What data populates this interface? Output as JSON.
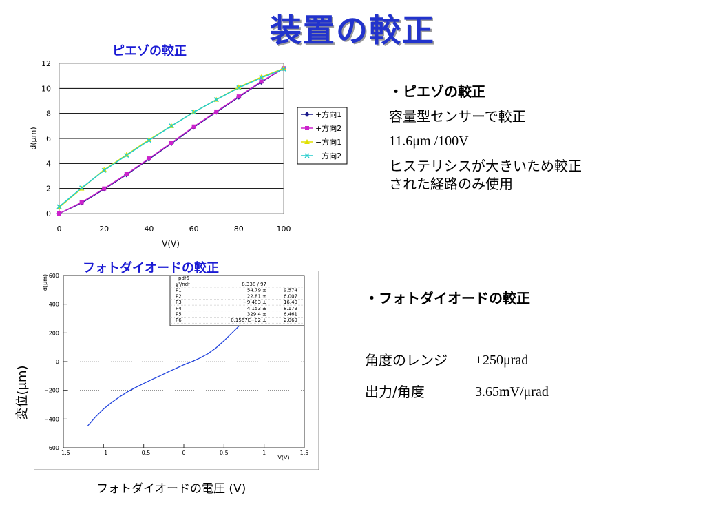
{
  "slide": {
    "title": "装置の較正",
    "piezo_notes": {
      "heading": "・ピエゾの較正",
      "line1": "容量型センサーで較正",
      "line2": "11.6μm /100V",
      "line3a": "ヒステリシスが大きいため較正",
      "line3b": "された経路のみ使用"
    },
    "pd_notes": {
      "heading": "・フォトダイオードの較正",
      "range_label": "角度のレンジ",
      "range_value": "±250μrad",
      "out_label": "出力/角度",
      "out_value": "3.65mV/μrad"
    }
  },
  "chart_data": [
    {
      "type": "line",
      "title": "ピエゾの較正",
      "xlabel": "V(V)",
      "ylabel": "d(μm)",
      "xlim": [
        0,
        100
      ],
      "ylim": [
        0,
        12
      ],
      "xticks": [
        0,
        20,
        40,
        60,
        80,
        100
      ],
      "yticks": [
        0,
        2,
        4,
        6,
        8,
        10,
        12
      ],
      "grid": "horizontal",
      "legend": "right",
      "x": [
        0,
        10,
        20,
        30,
        40,
        50,
        60,
        70,
        80,
        90,
        100
      ],
      "series": [
        {
          "name": "+方向1",
          "color": "#1a1a8c",
          "marker": "diamond",
          "values": [
            0.0,
            0.85,
            1.95,
            3.1,
            4.35,
            5.6,
            6.9,
            8.1,
            9.3,
            10.5,
            11.6
          ]
        },
        {
          "name": "+方向2",
          "color": "#cc22cc",
          "marker": "square",
          "values": [
            0.0,
            0.9,
            2.0,
            3.15,
            4.4,
            5.65,
            6.95,
            8.15,
            9.35,
            10.55,
            11.6
          ]
        },
        {
          "name": "−方向1",
          "color": "#e0e000",
          "marker": "triangle",
          "values": [
            0.5,
            2.0,
            3.5,
            4.7,
            5.9,
            7.0,
            8.1,
            9.1,
            10.1,
            10.9,
            11.6
          ]
        },
        {
          "name": "−方向2",
          "color": "#22cccc",
          "marker": "x",
          "values": [
            0.55,
            2.05,
            3.45,
            4.65,
            5.85,
            7.0,
            8.1,
            9.1,
            10.05,
            10.85,
            11.55
          ]
        }
      ]
    },
    {
      "type": "line",
      "title": "フォトダイオードの較正",
      "xlabel": "フォトダイオードの電圧 (V)",
      "axis_unit_x": "V(V)",
      "ylabel": "変位(μm)",
      "axis_unit_y": "d(μm)",
      "xlim": [
        -1.5,
        1.5
      ],
      "ylim": [
        -600,
        600
      ],
      "xticks": [
        -1.5,
        -1,
        -0.5,
        0,
        0.5,
        1,
        1.5
      ],
      "xtick_labels": [
        "−1.5",
        "−1",
        "−0.5",
        "0",
        "0.5",
        "1",
        "1.5"
      ],
      "yticks": [
        -600,
        -400,
        -200,
        0,
        200,
        400,
        600
      ],
      "ytick_labels": [
        "−600",
        "−400",
        "−200",
        "0",
        "200",
        "400",
        "600"
      ],
      "grid": "horizontal",
      "series": [
        {
          "name": "",
          "color": "#2244dd",
          "x": [
            -1.2,
            -1.1,
            -1.0,
            -0.9,
            -0.8,
            -0.7,
            -0.6,
            -0.5,
            -0.4,
            -0.3,
            -0.2,
            -0.1,
            0.0,
            0.1,
            0.2,
            0.3,
            0.4,
            0.5,
            0.6,
            0.7,
            0.8,
            0.9,
            1.0,
            1.1,
            1.2
          ],
          "values": [
            -450,
            -385,
            -330,
            -285,
            -245,
            -210,
            -180,
            -152,
            -125,
            -100,
            -73,
            -48,
            -22,
            0,
            25,
            55,
            95,
            145,
            200,
            255,
            315,
            375,
            440,
            505,
            575
          ]
        }
      ],
      "fit_box": {
        "header": "pdf6",
        "rows": [
          [
            "χ²/ndf",
            "8.338 / 97",
            ""
          ],
          [
            "P1",
            "54.79 ±",
            "9.574"
          ],
          [
            "P2",
            "22.81 ±",
            "6.007"
          ],
          [
            "P3",
            "−9.483 ±",
            "16.40"
          ],
          [
            "P4",
            "4.153 ±",
            "8.179"
          ],
          [
            "P5",
            "329.4 ±",
            "6.461"
          ],
          [
            "P6",
            "0.1567E−02 ±",
            "2.069"
          ]
        ]
      }
    }
  ]
}
